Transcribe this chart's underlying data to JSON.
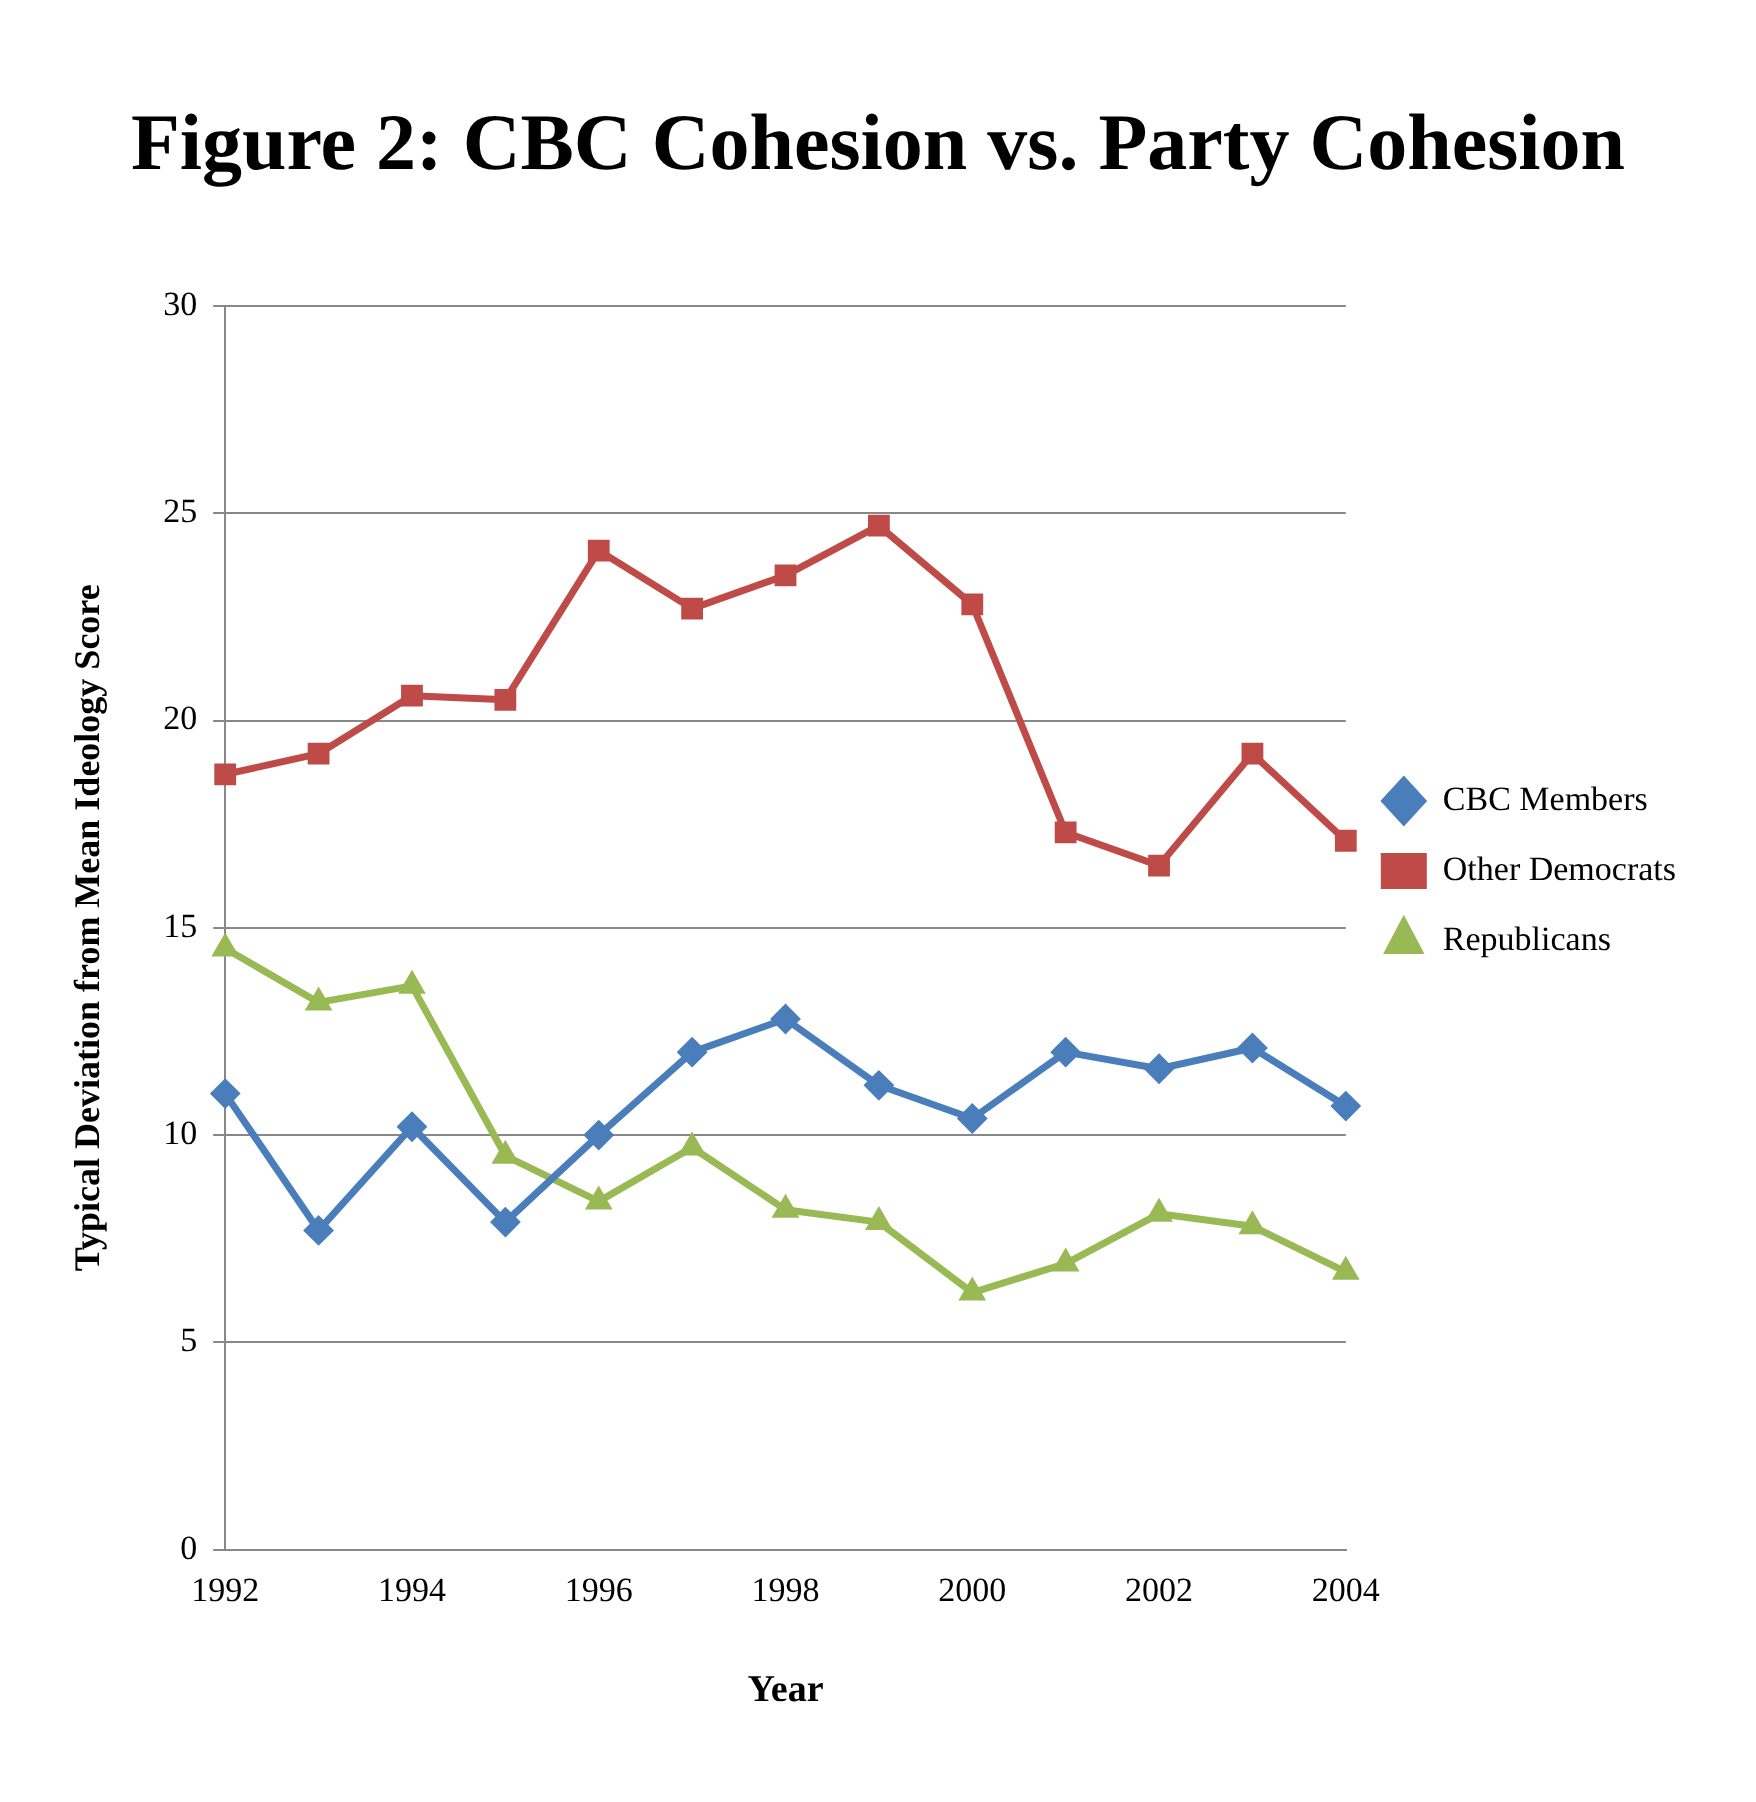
{
  "chart_data": {
    "type": "line",
    "title": "Figure 2: CBC Cohesion vs. Party Cohesion",
    "xlabel": "Year",
    "ylabel": "Typical Deviation from Mean Ideology Score",
    "categories": [
      "1992",
      null,
      "1994",
      null,
      "1996",
      null,
      "1998",
      null,
      "2000",
      null,
      "2002",
      null,
      "2004"
    ],
    "series": [
      {
        "name": "CBC Members",
        "color": "#4a7ebb",
        "marker": "diamond",
        "values": [
          11.0,
          7.7,
          10.2,
          7.9,
          10.0,
          12.0,
          12.8,
          11.2,
          10.4,
          12.0,
          11.6,
          12.1,
          10.7
        ]
      },
      {
        "name": "Other Democrats",
        "color": "#be4b48",
        "marker": "square",
        "values": [
          18.7,
          19.2,
          20.6,
          20.5,
          24.1,
          22.7,
          23.5,
          24.7,
          22.8,
          17.3,
          16.5,
          19.2,
          17.1
        ]
      },
      {
        "name": "Republicans",
        "color": "#98b954",
        "marker": "triangle",
        "values": [
          14.5,
          13.2,
          13.6,
          9.5,
          8.4,
          9.7,
          8.2,
          7.9,
          6.2,
          6.9,
          8.1,
          7.8,
          6.7
        ]
      }
    ],
    "ylim": [
      0,
      30
    ],
    "yticks": [
      0,
      5,
      10,
      15,
      20,
      25,
      30
    ],
    "grid": "y",
    "legend": "right",
    "line_style": "solid"
  }
}
